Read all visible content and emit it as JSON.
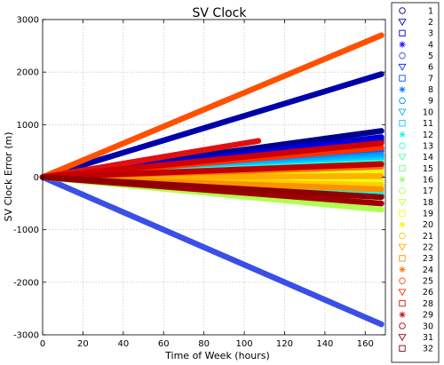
{
  "chart_data": {
    "type": "line",
    "title": "SV Clock",
    "xlabel": "Time of Week (hours)",
    "ylabel": "SV Clock Error (m)",
    "xlim": [
      0,
      170
    ],
    "ylim": [
      -3000,
      3000
    ],
    "xticks": [
      0,
      20,
      40,
      60,
      80,
      100,
      120,
      140,
      160
    ],
    "yticks": [
      -3000,
      -2000,
      -1000,
      0,
      1000,
      2000,
      3000
    ],
    "grid": true,
    "legend_position": "outside-right",
    "series": [
      {
        "name": "1",
        "marker": "circle",
        "color": "#00008f",
        "x": [
          0,
          168
        ],
        "y": [
          0,
          880
        ]
      },
      {
        "name": "2",
        "marker": "triangle-down",
        "color": "#0000ab",
        "x": [
          0,
          168
        ],
        "y": [
          0,
          1960
        ]
      },
      {
        "name": "3",
        "marker": "square",
        "color": "#0000cf",
        "x": [
          0,
          168
        ],
        "y": [
          0,
          760
        ]
      },
      {
        "name": "4",
        "marker": "star",
        "color": "#0000ef",
        "x": [
          0,
          168
        ],
        "y": [
          0,
          700
        ]
      },
      {
        "name": "5",
        "marker": "circle",
        "color": "#3a4fe6",
        "x": [
          0,
          168
        ],
        "y": [
          0,
          -2800
        ]
      },
      {
        "name": "6",
        "marker": "triangle-down",
        "color": "#1030ff",
        "x": [
          0,
          168
        ],
        "y": [
          0,
          560
        ]
      },
      {
        "name": "7",
        "marker": "square",
        "color": "#0050ff",
        "x": [
          0,
          168
        ],
        "y": [
          0,
          500
        ]
      },
      {
        "name": "8",
        "marker": "star",
        "color": "#0070ff",
        "x": [
          0,
          168
        ],
        "y": [
          0,
          -340
        ]
      },
      {
        "name": "9",
        "marker": "circle",
        "color": "#0090ff",
        "x": [
          0,
          168
        ],
        "y": [
          0,
          430
        ]
      },
      {
        "name": "10",
        "marker": "triangle-down",
        "color": "#00b0ff",
        "x": [
          0,
          168
        ],
        "y": [
          0,
          380
        ]
      },
      {
        "name": "11",
        "marker": "square",
        "color": "#00d0ff",
        "x": [
          0,
          168
        ],
        "y": [
          0,
          330
        ]
      },
      {
        "name": "12",
        "marker": "star",
        "color": "#10f0ef",
        "x": [
          0,
          168
        ],
        "y": [
          0,
          -280
        ]
      },
      {
        "name": "13",
        "marker": "circle",
        "color": "#30ffcf",
        "x": [
          0,
          168
        ],
        "y": [
          0,
          280
        ]
      },
      {
        "name": "14",
        "marker": "triangle-down",
        "color": "#50ffaf",
        "x": [
          0,
          168
        ],
        "y": [
          0,
          230
        ]
      },
      {
        "name": "15",
        "marker": "square",
        "color": "#70ff8f",
        "x": [
          0,
          168
        ],
        "y": [
          0,
          -180
        ]
      },
      {
        "name": "16",
        "marker": "star",
        "color": "#90ff6f",
        "x": [
          0,
          168
        ],
        "y": [
          0,
          160
        ]
      },
      {
        "name": "17",
        "marker": "circle",
        "color": "#afff50",
        "x": [
          0,
          168
        ],
        "y": [
          0,
          -620
        ]
      },
      {
        "name": "18",
        "marker": "triangle-down",
        "color": "#cfff30",
        "x": [
          0,
          168
        ],
        "y": [
          0,
          100
        ]
      },
      {
        "name": "19",
        "marker": "square",
        "color": "#efff10",
        "x": [
          0,
          168
        ],
        "y": [
          0,
          -90
        ]
      },
      {
        "name": "20",
        "marker": "star",
        "color": "#ffef00",
        "x": [
          0,
          168
        ],
        "y": [
          0,
          60
        ]
      },
      {
        "name": "21",
        "marker": "circle",
        "color": "#ffcf00",
        "x": [
          0,
          168
        ],
        "y": [
          0,
          -150
        ]
      },
      {
        "name": "22",
        "marker": "triangle-down",
        "color": "#ffaf00",
        "x": [
          0,
          168
        ],
        "y": [
          0,
          20
        ]
      },
      {
        "name": "23",
        "marker": "square",
        "color": "#ff9000",
        "x": [
          0,
          168
        ],
        "y": [
          0,
          -230
        ]
      },
      {
        "name": "24",
        "marker": "star",
        "color": "#ff7000",
        "x": [
          0,
          168
        ],
        "y": [
          0,
          200
        ]
      },
      {
        "name": "25",
        "marker": "circle",
        "color": "#ff5000",
        "x": [
          0,
          168
        ],
        "y": [
          0,
          2700
        ]
      },
      {
        "name": "26",
        "marker": "triangle-down",
        "color": "#ff3000",
        "x": [
          0,
          168
        ],
        "y": [
          0,
          560
        ]
      },
      {
        "name": "28",
        "marker": "square",
        "color": "#e01010",
        "x": [
          0,
          107
        ],
        "y": [
          0,
          690
        ]
      },
      {
        "name": "29",
        "marker": "star",
        "color": "#cf0000",
        "x": [
          0,
          168
        ],
        "y": [
          0,
          650
        ]
      },
      {
        "name": "30",
        "marker": "circle",
        "color": "#c00000",
        "x": [
          0,
          168
        ],
        "y": [
          0,
          250
        ]
      },
      {
        "name": "31",
        "marker": "triangle-down",
        "color": "#a00000",
        "x": [
          0,
          168
        ],
        "y": [
          0,
          -500
        ]
      },
      {
        "name": "32",
        "marker": "square",
        "color": "#8f0000",
        "x": [
          0,
          168
        ],
        "y": [
          0,
          -380
        ]
      }
    ]
  }
}
